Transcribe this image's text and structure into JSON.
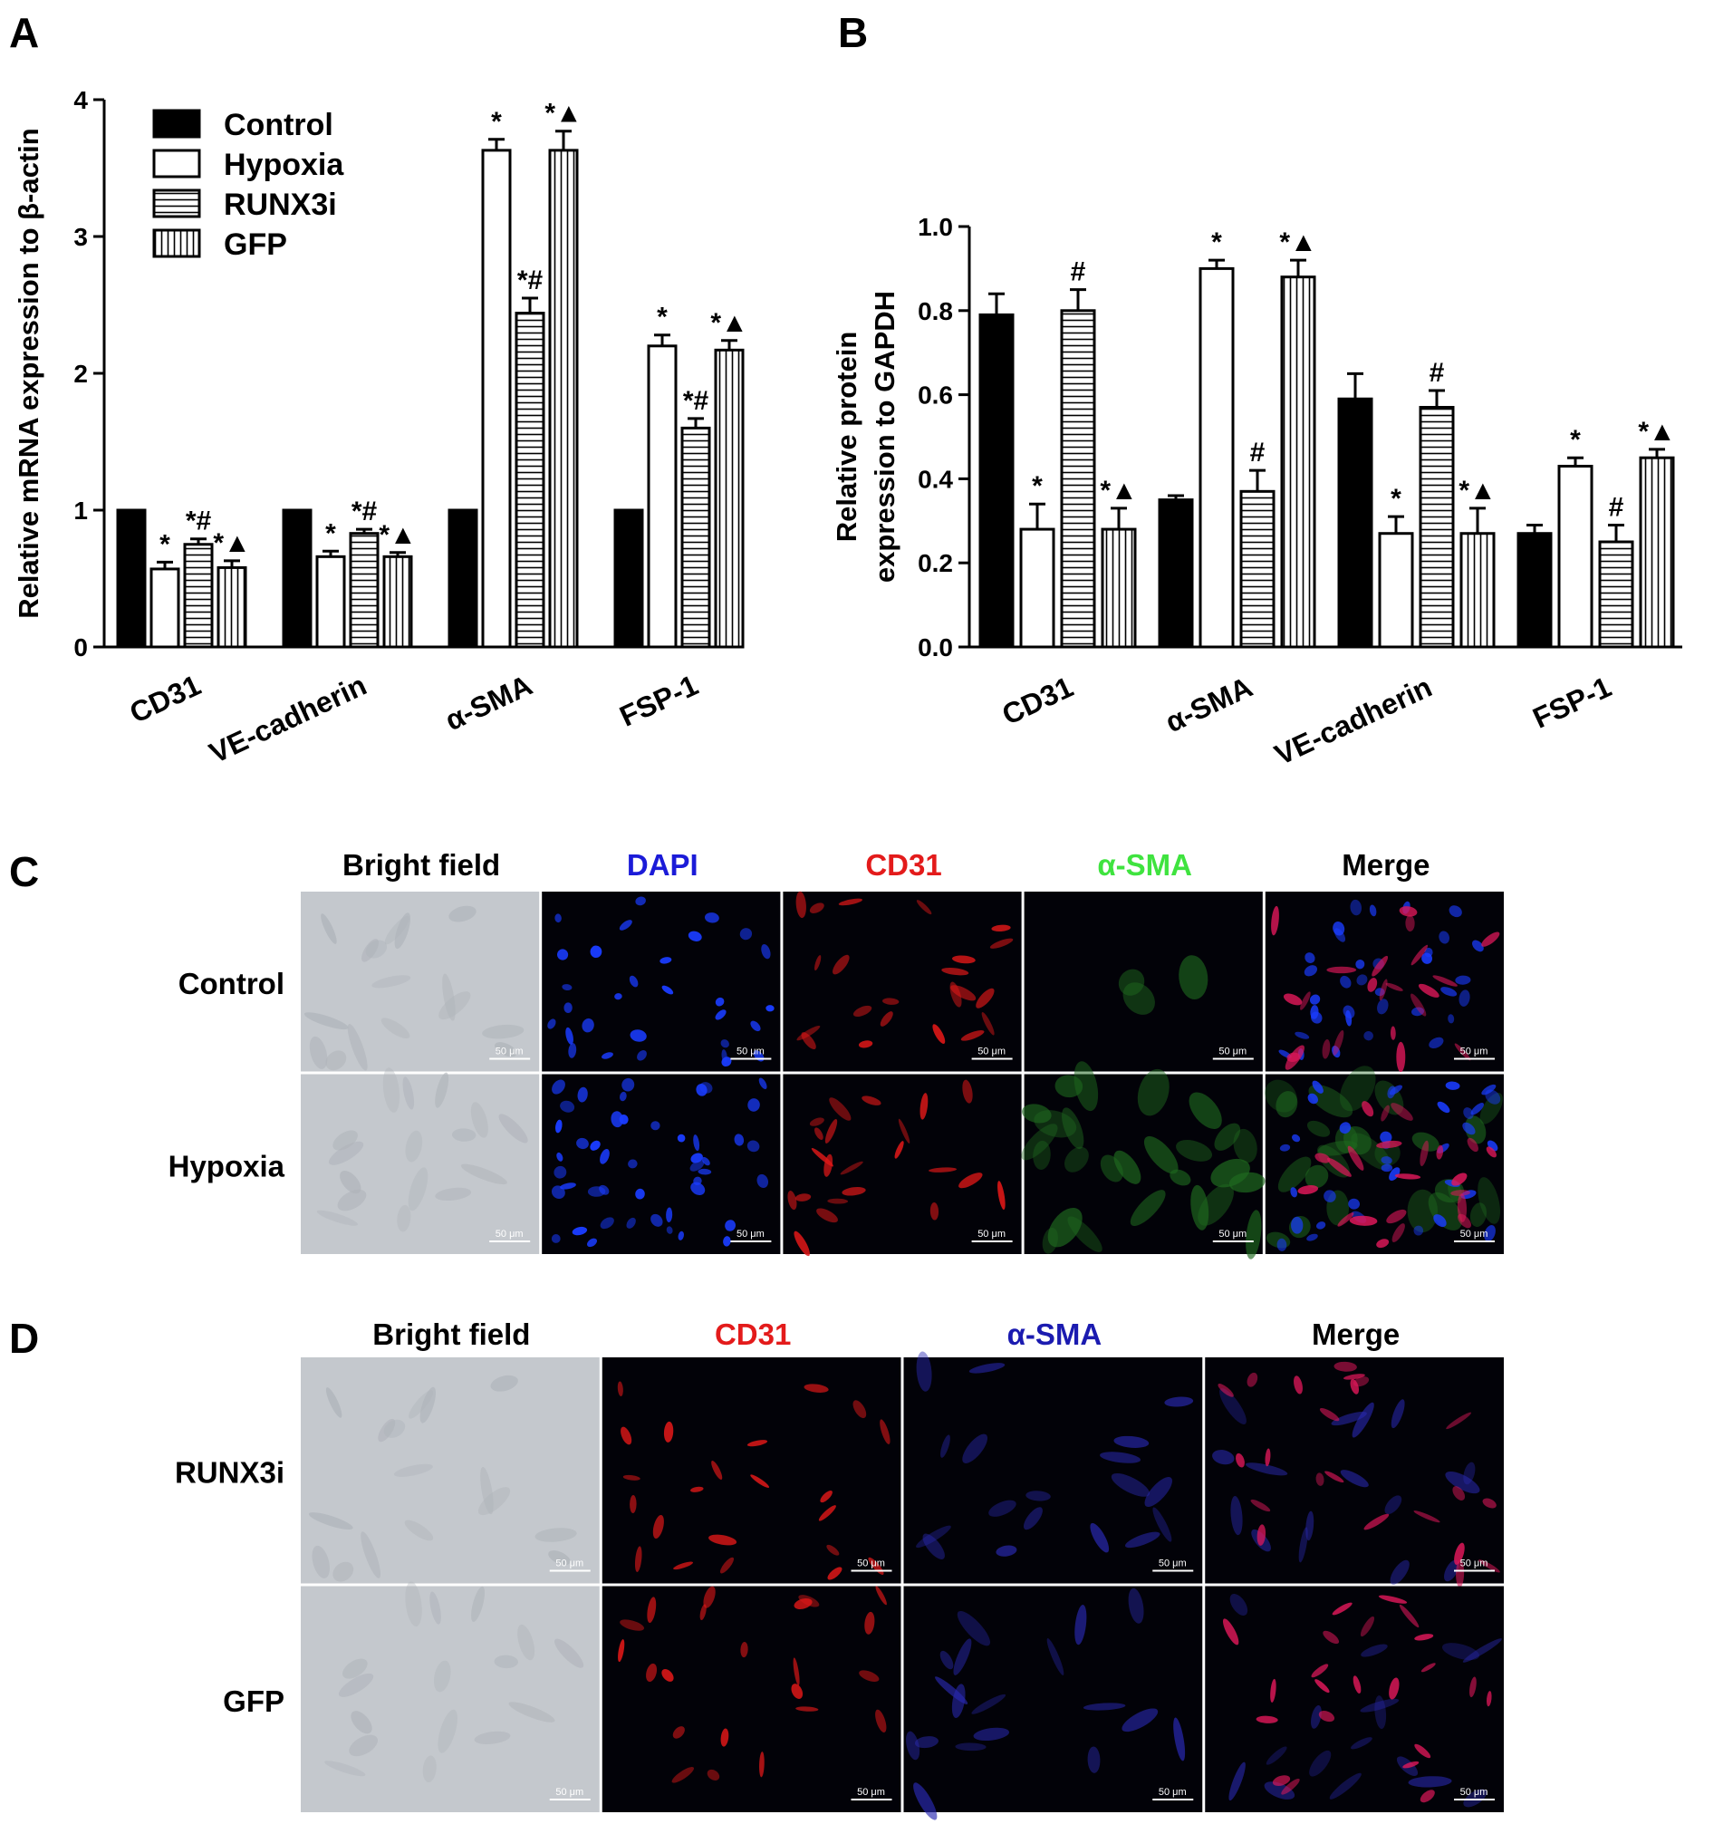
{
  "panels": [
    {
      "letter": "A"
    },
    {
      "letter": "B"
    },
    {
      "letter": "C"
    },
    {
      "letter": "D"
    }
  ],
  "legend": [
    {
      "name": "Control",
      "pattern": "solid"
    },
    {
      "name": "Hypoxia",
      "pattern": "open"
    },
    {
      "name": "RUNX3i",
      "pattern": "hlines"
    },
    {
      "name": "GFP",
      "pattern": "vlines"
    }
  ],
  "chart_data": [
    {
      "panel": "A",
      "type": "bar",
      "ylabel": "Relative mRNA expression to β-actin",
      "ylim": [
        0,
        4
      ],
      "yticks": [
        "0",
        "1",
        "2",
        "3",
        "4"
      ],
      "categories": [
        "CD31",
        "VE-cadherin",
        "α-SMA",
        "FSP-1"
      ],
      "series": [
        {
          "name": "Control",
          "values": [
            1.0,
            1.0,
            1.0,
            1.0
          ],
          "errors": [
            0,
            0,
            0,
            0
          ],
          "marks": [
            "",
            "",
            "",
            ""
          ]
        },
        {
          "name": "Hypoxia",
          "values": [
            0.57,
            0.66,
            3.63,
            2.2
          ],
          "errors": [
            0.05,
            0.04,
            0.08,
            0.08
          ],
          "marks": [
            "*",
            "*",
            "*",
            "*"
          ]
        },
        {
          "name": "RUNX3i",
          "values": [
            0.75,
            0.83,
            2.44,
            1.6
          ],
          "errors": [
            0.04,
            0.03,
            0.11,
            0.07
          ],
          "marks": [
            "*#",
            "*#",
            "*#",
            "*#"
          ]
        },
        {
          "name": "GFP",
          "values": [
            0.58,
            0.66,
            3.63,
            2.17
          ],
          "errors": [
            0.05,
            0.03,
            0.14,
            0.07
          ],
          "marks": [
            "*▲",
            "*▲",
            "*▲",
            "*▲"
          ]
        }
      ]
    },
    {
      "panel": "B",
      "type": "bar",
      "ylabel": [
        "Relative protein",
        "expression to GAPDH"
      ],
      "ylim": [
        0,
        1.0
      ],
      "yticks": [
        "0.0",
        "0.2",
        "0.4",
        "0.6",
        "0.8",
        "1.0"
      ],
      "categories": [
        "CD31",
        "α-SMA",
        "VE-cadherin",
        "FSP-1"
      ],
      "series": [
        {
          "name": "Control",
          "values": [
            0.79,
            0.35,
            0.59,
            0.27
          ],
          "errors": [
            0.05,
            0.01,
            0.06,
            0.02
          ],
          "marks": [
            "",
            "",
            "",
            ""
          ]
        },
        {
          "name": "Hypoxia",
          "values": [
            0.28,
            0.9,
            0.27,
            0.43
          ],
          "errors": [
            0.06,
            0.02,
            0.04,
            0.02
          ],
          "marks": [
            "*",
            "*",
            "*",
            "*"
          ]
        },
        {
          "name": "RUNX3i",
          "values": [
            0.8,
            0.37,
            0.57,
            0.25
          ],
          "errors": [
            0.05,
            0.05,
            0.04,
            0.04
          ],
          "marks": [
            "#",
            "#",
            "#",
            "#"
          ]
        },
        {
          "name": "GFP",
          "values": [
            0.28,
            0.88,
            0.27,
            0.45
          ],
          "errors": [
            0.05,
            0.04,
            0.06,
            0.02
          ],
          "marks": [
            "*▲",
            "*▲",
            "*▲",
            "*▲"
          ]
        }
      ]
    }
  ],
  "panel_c": {
    "columns": [
      {
        "label": "Bright field",
        "color": "#000000"
      },
      {
        "label": "DAPI",
        "color": "#1b1bd8"
      },
      {
        "label": "CD31",
        "color": "#e31b1b"
      },
      {
        "label": "α-SMA",
        "color": "#3fe33f"
      },
      {
        "label": "Merge",
        "color": "#000000"
      }
    ],
    "rows": [
      "Control",
      "Hypoxia"
    ],
    "scale_bar": "50 μm"
  },
  "panel_d": {
    "columns": [
      {
        "label": "Bright field",
        "color": "#000000"
      },
      {
        "label": "CD31",
        "color": "#e31b1b"
      },
      {
        "label": "α-SMA",
        "color": "#1b1bb0"
      },
      {
        "label": "Merge",
        "color": "#000000"
      }
    ],
    "rows": [
      "RUNX3i",
      "GFP"
    ],
    "scale_bar": "50 μm"
  }
}
